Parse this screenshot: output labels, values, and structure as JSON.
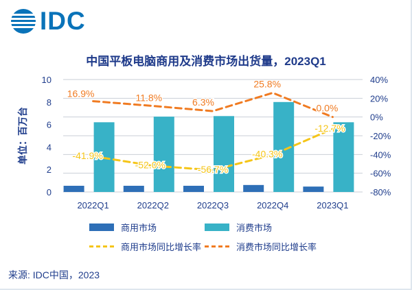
{
  "brand": {
    "name": "IDC",
    "color": "#0a73b9"
  },
  "source": "来源: IDC中国，2023",
  "chart_data": {
    "type": "bar",
    "title": "中国平板电脑商用及消费市场出货量，2023Q1",
    "ylabel": "单位：百万台",
    "categories": [
      "2022Q1",
      "2022Q2",
      "2022Q3",
      "2022Q4",
      "2023Q1"
    ],
    "ylim": [
      0,
      10
    ],
    "yticks": [
      "0",
      "2",
      "4",
      "6",
      "8",
      "10"
    ],
    "y2lim": [
      -80,
      40
    ],
    "y2ticks": [
      "-80%",
      "-60%",
      "-40%",
      "-20%",
      "0%",
      "20%",
      "40%"
    ],
    "series": [
      {
        "name": "商用市场",
        "type": "bar",
        "axis": "left",
        "color": "#2e6fb7",
        "values": [
          0.55,
          0.55,
          0.55,
          0.62,
          0.48
        ]
      },
      {
        "name": "消费市场",
        "type": "bar",
        "axis": "left",
        "color": "#38b2c7",
        "values": [
          6.2,
          6.7,
          6.75,
          8.0,
          6.2
        ]
      },
      {
        "name": "商用市场同比增长率",
        "type": "line",
        "axis": "right",
        "color": "#f5c518",
        "values": [
          -41.9,
          -52.0,
          -56.7,
          -40.3,
          -12.7
        ],
        "labels": [
          "-41.9%",
          "-52.0%",
          "-56.7%",
          "-40.3%",
          "-12.7%"
        ]
      },
      {
        "name": "消费市场同比增长率",
        "type": "line",
        "axis": "right",
        "color": "#f07b22",
        "values": [
          16.9,
          11.8,
          6.3,
          25.8,
          0.0
        ],
        "labels": [
          "16.9%",
          "11.8%",
          "6.3%",
          "25.8%",
          "0.0%"
        ]
      }
    ],
    "legend": [
      "商用市场",
      "消费市场",
      "商用市场同比增长率",
      "消费市场同比增长率"
    ]
  }
}
